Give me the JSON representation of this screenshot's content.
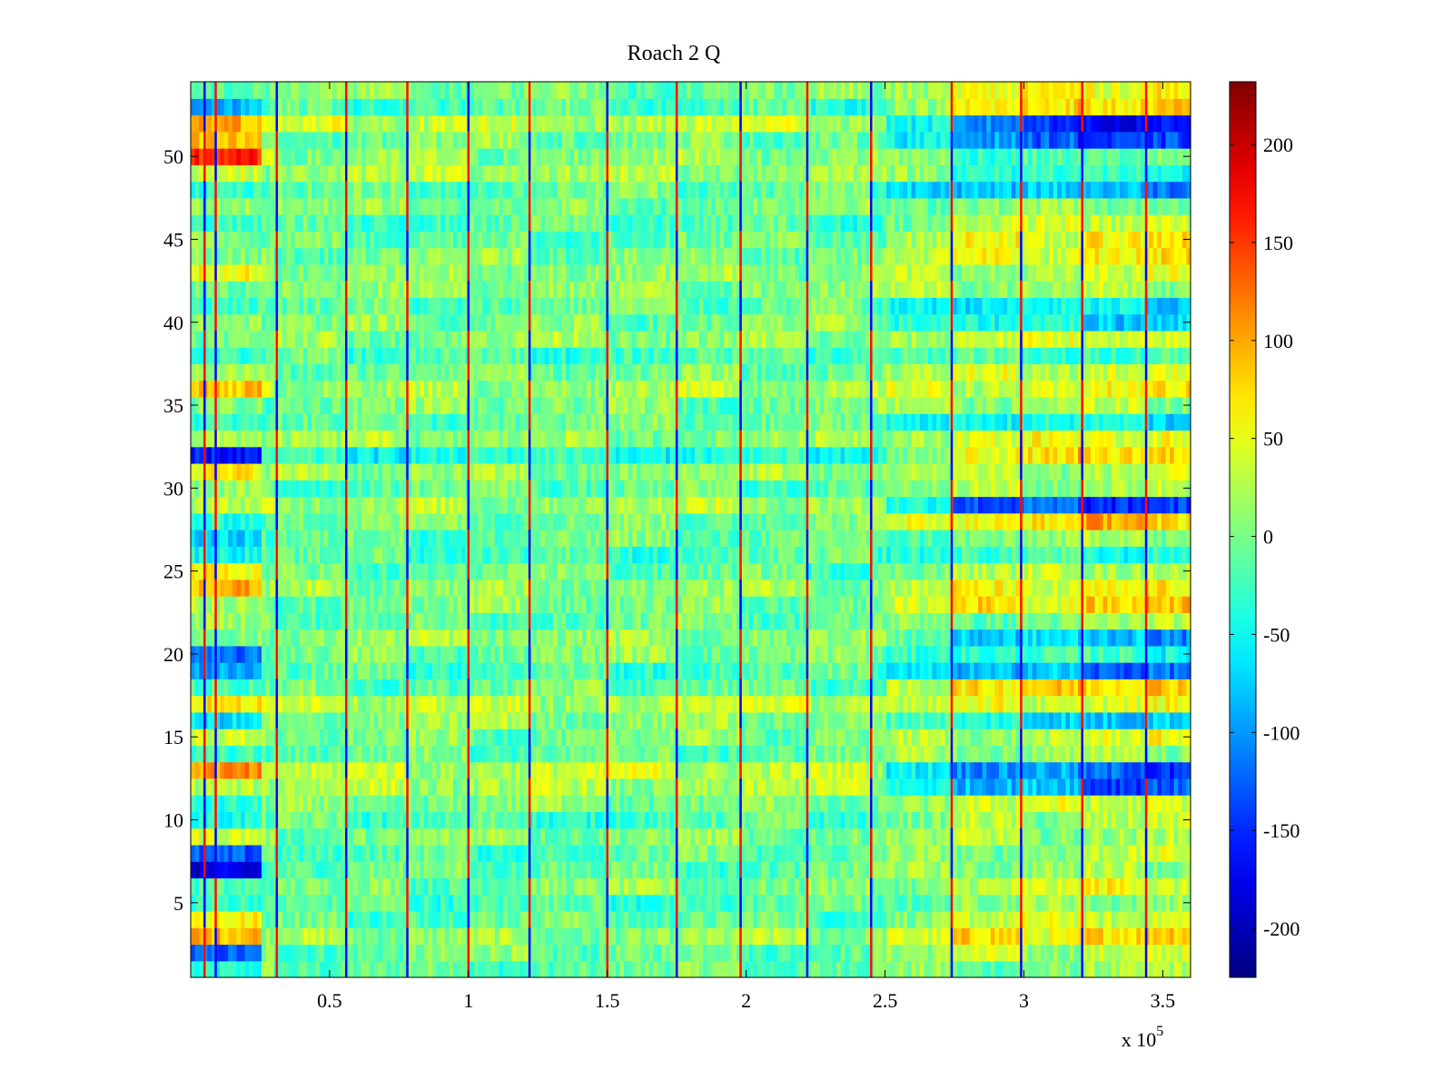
{
  "chart_data": {
    "type": "heatmap",
    "title": "Roach 2 Q",
    "xlabel": "",
    "ylabel": "",
    "x_multiplier_label": "x 10",
    "x_multiplier_exponent": "5",
    "xlim": [
      0,
      3.6
    ],
    "ylim": [
      0.5,
      54.5
    ],
    "n_rows": 54,
    "x_ticks": [
      {
        "value": 0.5,
        "label": "0.5"
      },
      {
        "value": 1,
        "label": "1"
      },
      {
        "value": 1.5,
        "label": "1.5"
      },
      {
        "value": 2,
        "label": "2"
      },
      {
        "value": 2.5,
        "label": "2.5"
      },
      {
        "value": 3,
        "label": "3"
      },
      {
        "value": 3.5,
        "label": "3.5"
      }
    ],
    "y_ticks": [
      {
        "value": 5,
        "label": "5"
      },
      {
        "value": 10,
        "label": "10"
      },
      {
        "value": 15,
        "label": "15"
      },
      {
        "value": 20,
        "label": "20"
      },
      {
        "value": 25,
        "label": "25"
      },
      {
        "value": 30,
        "label": "30"
      },
      {
        "value": 35,
        "label": "35"
      },
      {
        "value": 40,
        "label": "40"
      },
      {
        "value": 45,
        "label": "45"
      },
      {
        "value": 50,
        "label": "50"
      }
    ],
    "colorbar": {
      "colormap": "jet",
      "range": [
        -225,
        232
      ],
      "ticks": [
        {
          "value": 200,
          "label": "200"
        },
        {
          "value": 150,
          "label": "150"
        },
        {
          "value": 100,
          "label": "100"
        },
        {
          "value": 50,
          "label": "50"
        },
        {
          "value": 0,
          "label": "0"
        },
        {
          "value": -50,
          "label": "-50"
        },
        {
          "value": -100,
          "label": "-100"
        },
        {
          "value": -150,
          "label": "-150"
        },
        {
          "value": -200,
          "label": "-200"
        }
      ]
    },
    "x_segment_boundaries": [
      0,
      0.3,
      0.55,
      0.78,
      1.0,
      1.22,
      1.5,
      1.75,
      1.98,
      2.22,
      2.45,
      2.74,
      2.99,
      3.21,
      3.44,
      3.6
    ],
    "spike_columns": [
      {
        "x": 0.05,
        "sign": -1
      },
      {
        "x": 0.09,
        "sign": 1
      },
      {
        "x": 0.31,
        "sign": -1
      },
      {
        "x": 0.56,
        "sign": 1
      },
      {
        "x": 0.78,
        "sign": 1
      },
      {
        "x": 1.0,
        "sign": -1
      },
      {
        "x": 1.22,
        "sign": 1
      },
      {
        "x": 1.5,
        "sign": -1
      },
      {
        "x": 1.75,
        "sign": 1
      },
      {
        "x": 1.98,
        "sign": -1
      },
      {
        "x": 2.22,
        "sign": 1
      },
      {
        "x": 2.45,
        "sign": -1
      },
      {
        "x": 2.74,
        "sign": 1
      },
      {
        "x": 2.99,
        "sign": 1
      },
      {
        "x": 3.21,
        "sign": 1
      },
      {
        "x": 3.44,
        "sign": 1
      }
    ],
    "row_profiles": [
      {
        "row": 1,
        "early": -60,
        "mid": -10,
        "late": 10
      },
      {
        "row": 2,
        "early": -140,
        "mid": -5,
        "late": 30
      },
      {
        "row": 3,
        "early": 90,
        "mid": 10,
        "late": 85
      },
      {
        "row": 4,
        "early": 60,
        "mid": -10,
        "late": 40
      },
      {
        "row": 5,
        "early": -20,
        "mid": -20,
        "late": 20
      },
      {
        "row": 6,
        "early": -10,
        "mid": 0,
        "late": 45
      },
      {
        "row": 7,
        "early": -170,
        "mid": -10,
        "late": 20
      },
      {
        "row": 8,
        "early": -150,
        "mid": -15,
        "late": 25
      },
      {
        "row": 9,
        "early": 30,
        "mid": 5,
        "late": 15
      },
      {
        "row": 10,
        "early": -50,
        "mid": -20,
        "late": 30
      },
      {
        "row": 11,
        "early": -40,
        "mid": 0,
        "late": 40
      },
      {
        "row": 12,
        "early": 30,
        "mid": 20,
        "late": -120
      },
      {
        "row": 13,
        "early": 120,
        "mid": 30,
        "late": -140
      },
      {
        "row": 14,
        "early": -10,
        "mid": -10,
        "late": 20
      },
      {
        "row": 15,
        "early": 20,
        "mid": 0,
        "late": 40
      },
      {
        "row": 16,
        "early": -80,
        "mid": 10,
        "late": -80
      },
      {
        "row": 17,
        "early": 60,
        "mid": 30,
        "late": 50
      },
      {
        "row": 18,
        "early": -20,
        "mid": -10,
        "late": 90
      },
      {
        "row": 19,
        "early": -90,
        "mid": -20,
        "late": -110
      },
      {
        "row": 20,
        "early": -110,
        "mid": 0,
        "late": -40
      },
      {
        "row": 21,
        "early": 20,
        "mid": 10,
        "late": -90
      },
      {
        "row": 22,
        "early": 0,
        "mid": -10,
        "late": 10
      },
      {
        "row": 23,
        "early": 10,
        "mid": 0,
        "late": 80
      },
      {
        "row": 24,
        "early": 90,
        "mid": 10,
        "late": 60
      },
      {
        "row": 25,
        "early": 60,
        "mid": -10,
        "late": 30
      },
      {
        "row": 26,
        "early": -40,
        "mid": -20,
        "late": -30
      },
      {
        "row": 27,
        "early": -60,
        "mid": -10,
        "late": 10
      },
      {
        "row": 28,
        "early": -20,
        "mid": 0,
        "late": 90
      },
      {
        "row": 29,
        "early": 10,
        "mid": 20,
        "late": -160
      },
      {
        "row": 30,
        "early": 0,
        "mid": -10,
        "late": 20
      },
      {
        "row": 31,
        "early": 60,
        "mid": 10,
        "late": 30
      },
      {
        "row": 32,
        "early": -160,
        "mid": -40,
        "late": 80
      },
      {
        "row": 33,
        "early": 30,
        "mid": 10,
        "late": 60
      },
      {
        "row": 34,
        "early": -20,
        "mid": -10,
        "late": -60
      },
      {
        "row": 35,
        "early": 20,
        "mid": 0,
        "late": 20
      },
      {
        "row": 36,
        "early": 70,
        "mid": 20,
        "late": 50
      },
      {
        "row": 37,
        "early": 10,
        "mid": 0,
        "late": 40
      },
      {
        "row": 38,
        "early": -40,
        "mid": -20,
        "late": -20
      },
      {
        "row": 39,
        "early": 0,
        "mid": 10,
        "late": 40
      },
      {
        "row": 40,
        "early": 20,
        "mid": 0,
        "late": -60
      },
      {
        "row": 41,
        "early": -10,
        "mid": -10,
        "late": -70
      },
      {
        "row": 42,
        "early": 10,
        "mid": 10,
        "late": 20
      },
      {
        "row": 43,
        "early": 40,
        "mid": 10,
        "late": 30
      },
      {
        "row": 44,
        "early": -10,
        "mid": 0,
        "late": 60
      },
      {
        "row": 45,
        "early": 0,
        "mid": -10,
        "late": 70
      },
      {
        "row": 46,
        "early": -30,
        "mid": -20,
        "late": 40
      },
      {
        "row": 47,
        "early": 20,
        "mid": 0,
        "late": 10
      },
      {
        "row": 48,
        "early": -20,
        "mid": -10,
        "late": -100
      },
      {
        "row": 49,
        "early": 60,
        "mid": 20,
        "late": -40
      },
      {
        "row": 50,
        "early": 140,
        "mid": 10,
        "late": -20
      },
      {
        "row": 51,
        "early": 70,
        "mid": 0,
        "late": -150
      },
      {
        "row": 52,
        "early": 90,
        "mid": 30,
        "late": -170
      },
      {
        "row": 53,
        "early": -90,
        "mid": -20,
        "late": 80
      },
      {
        "row": 54,
        "early": -10,
        "mid": 0,
        "late": 70
      }
    ]
  }
}
